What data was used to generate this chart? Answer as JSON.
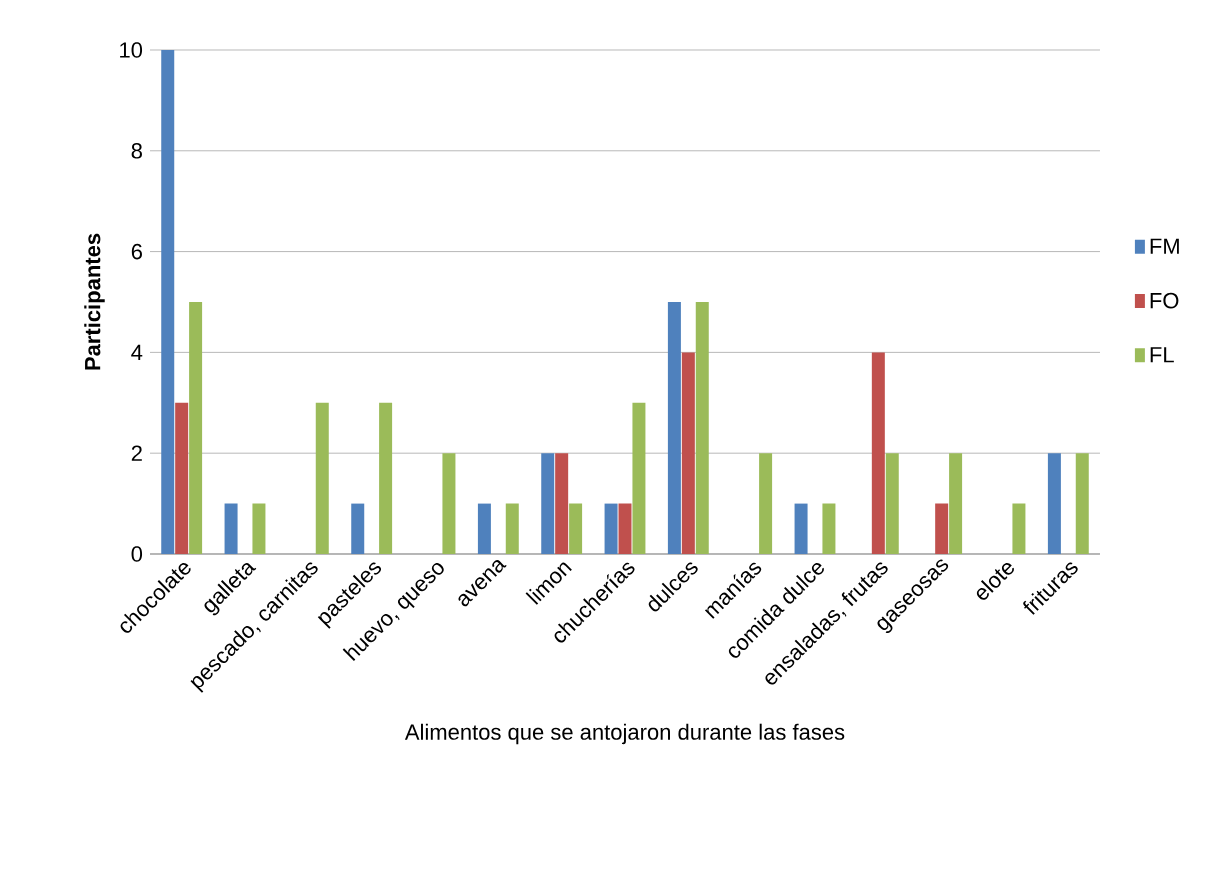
{
  "chart_data": {
    "type": "bar",
    "xlabel": "Alimentos que se antojaron durante las fases",
    "ylabel": "Participantes",
    "categories": [
      "chocolate",
      "galleta",
      "pescado, carnitas",
      "pasteles",
      "huevo, queso",
      "avena",
      "limon",
      "chucherías",
      "dulces",
      "manías",
      "comida dulce",
      "ensaladas, frutas",
      "gaseosas",
      "elote",
      "frituras"
    ],
    "series": [
      {
        "name": "FM",
        "color": "#4f81bd",
        "values": [
          10,
          1,
          0,
          1,
          0,
          1,
          2,
          1,
          5,
          0,
          1,
          0,
          0,
          0,
          2
        ]
      },
      {
        "name": "FO",
        "color": "#c0504d",
        "values": [
          3,
          0,
          0,
          0,
          0,
          0,
          2,
          1,
          4,
          0,
          0,
          4,
          1,
          0,
          0
        ]
      },
      {
        "name": "FL",
        "color": "#9bbb59",
        "values": [
          5,
          1,
          3,
          3,
          2,
          1,
          1,
          3,
          5,
          2,
          1,
          2,
          2,
          1,
          2
        ]
      }
    ],
    "ylim": [
      0,
      10
    ],
    "yticks": [
      0,
      2,
      4,
      6,
      8,
      10
    ],
    "grid": "y",
    "legend": "right"
  }
}
